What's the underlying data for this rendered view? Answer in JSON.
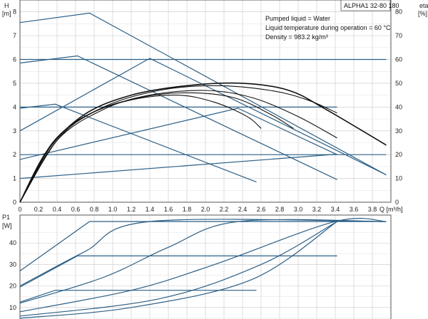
{
  "title_box": "ALPHA1 32-80 180",
  "info_lines": [
    "Pumped liquid = Water",
    "Liquid temperature during operation = 60 °C",
    "Density = 983.2 kg/m³"
  ],
  "colors": {
    "curve_blue": "#2b5f86",
    "curve_black": "#111111",
    "grid": "#c8c8c8",
    "frame": "#555555"
  },
  "chart_data": [
    {
      "type": "line",
      "name": "head_curves",
      "ylabel_symbol": "H",
      "ylabel_unit": "[m]",
      "y2label_top": "eta",
      "y2label_unit": "[%]",
      "xlabel": "Q [m³/h]",
      "xlim": [
        0,
        4.0
      ],
      "ylim": [
        0,
        8.5
      ],
      "y2lim": [
        0,
        85
      ],
      "x_ticks": [
        "0",
        "0.2",
        "0.4",
        "0.6",
        "0.8",
        "1.0",
        "1.2",
        "1.4",
        "1.6",
        "1.8",
        "2.0",
        "2.2",
        "2.4",
        "2.6",
        "2.8",
        "3.0",
        "3.2",
        "3.4",
        "3.6",
        "3.8"
      ],
      "y_ticks": [
        "1",
        "2",
        "3",
        "4",
        "5",
        "6",
        "7",
        "8"
      ],
      "y2_ticks": [
        "10",
        "20",
        "30",
        "40",
        "50",
        "60",
        "70",
        "80"
      ],
      "grid": true,
      "head_series": [
        {
          "x": [
            0,
            0.75,
            3.95
          ],
          "y": [
            7.55,
            7.95,
            1.15
          ]
        },
        {
          "x": [
            0,
            0.62,
            3.42
          ],
          "y": [
            5.85,
            6.15,
            0.95
          ]
        },
        {
          "x": [
            0,
            0.38,
            2.55
          ],
          "y": [
            3.95,
            4.12,
            0.85
          ]
        },
        {
          "x": [
            0,
            3.95
          ],
          "y": [
            6.0,
            6.0
          ]
        },
        {
          "x": [
            0,
            3.42
          ],
          "y": [
            4.0,
            4.0
          ]
        },
        {
          "x": [
            0,
            3.95
          ],
          "y": [
            2.0,
            2.0
          ]
        },
        {
          "x": [
            0,
            1.4,
            3.95
          ],
          "y": [
            3.0,
            6.05,
            1.15
          ]
        },
        {
          "x": [
            0,
            2.35,
            3.42
          ],
          "y": [
            1.8,
            3.95,
            2.0
          ]
        },
        {
          "x": [
            0,
            3.42
          ],
          "y": [
            1.0,
            2.02
          ]
        }
      ],
      "efficiency_series": [
        {
          "x": [
            0,
            0.3,
            0.7,
            1.2,
            1.8,
            2.4,
            2.9,
            3.3,
            3.95
          ],
          "y": [
            0,
            22,
            37,
            45,
            49,
            50,
            47,
            39,
            24
          ]
        },
        {
          "x": [
            0,
            0.4,
            0.9,
            1.5,
            2.1,
            2.7,
            3.1,
            3.42
          ],
          "y": [
            0,
            27,
            40,
            47,
            49,
            47,
            43,
            37.5
          ]
        },
        {
          "x": [
            0,
            0.4,
            0.9,
            1.4,
            2.0,
            2.5,
            3.0,
            3.42
          ],
          "y": [
            0,
            26,
            39,
            45,
            47,
            44,
            36,
            27
          ]
        },
        {
          "x": [
            0,
            0.4,
            0.8,
            1.3,
            1.8,
            2.3,
            2.7,
            2.95
          ],
          "y": [
            0,
            26,
            38,
            44,
            46,
            44,
            37,
            31
          ]
        },
        {
          "x": [
            0,
            0.35,
            0.75,
            1.2,
            1.7,
            2.1,
            2.45,
            2.6
          ],
          "y": [
            0,
            25,
            37,
            43,
            45,
            42,
            36,
            31
          ]
        }
      ]
    },
    {
      "type": "line",
      "name": "power_curves",
      "ylabel_symbol": "P1",
      "ylabel_unit": "[W]",
      "xlim": [
        0,
        4.0
      ],
      "ylim": [
        0,
        53
      ],
      "y_ticks": [
        "10",
        "20",
        "30",
        "40"
      ],
      "grid": true,
      "series": [
        {
          "x": [
            0,
            0.75,
            3.95
          ],
          "y": [
            27,
            50,
            50
          ]
        },
        {
          "x": [
            0,
            0.62,
            3.42
          ],
          "y": [
            19.5,
            34,
            34
          ]
        },
        {
          "x": [
            0,
            0.38,
            2.55
          ],
          "y": [
            12.5,
            18,
            18
          ]
        },
        {
          "x": [
            0,
            0.7,
            1.4,
            3.95
          ],
          "y": [
            20,
            36,
            50,
            50
          ]
        },
        {
          "x": [
            0,
            0.9,
            1.6,
            2.35,
            3.95
          ],
          "y": [
            12,
            24,
            38,
            50,
            50
          ]
        },
        {
          "x": [
            0,
            1.2,
            2.1,
            3.4,
            3.95
          ],
          "y": [
            8,
            18,
            30,
            50,
            50
          ]
        },
        {
          "x": [
            0,
            1.5,
            2.6,
            3.42
          ],
          "y": [
            6,
            14,
            30,
            50
          ]
        },
        {
          "x": [
            0,
            1.2,
            2.5,
            3.42
          ],
          "y": [
            5,
            10,
            23,
            50
          ]
        }
      ]
    }
  ]
}
